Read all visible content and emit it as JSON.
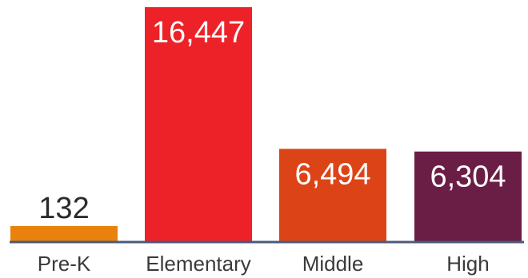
{
  "chart_data": {
    "type": "bar",
    "categories": [
      "Pre-K",
      "Elementary",
      "Middle",
      "High"
    ],
    "values": [
      132,
      16447,
      6494,
      6304
    ],
    "value_labels": [
      "132",
      "16,447",
      "6,494",
      "6,304"
    ],
    "colors": [
      "#E8820C",
      "#ED2228",
      "#DC4418",
      "#6B1E45"
    ],
    "title": "",
    "xlabel": "",
    "ylabel": "",
    "ylim": [
      0,
      16447
    ],
    "grid": false,
    "legend": "none",
    "baseline_color": "#4B5A7C",
    "label_inside_color": "#ffffff",
    "label_outside_color": "#2b2b2b"
  }
}
